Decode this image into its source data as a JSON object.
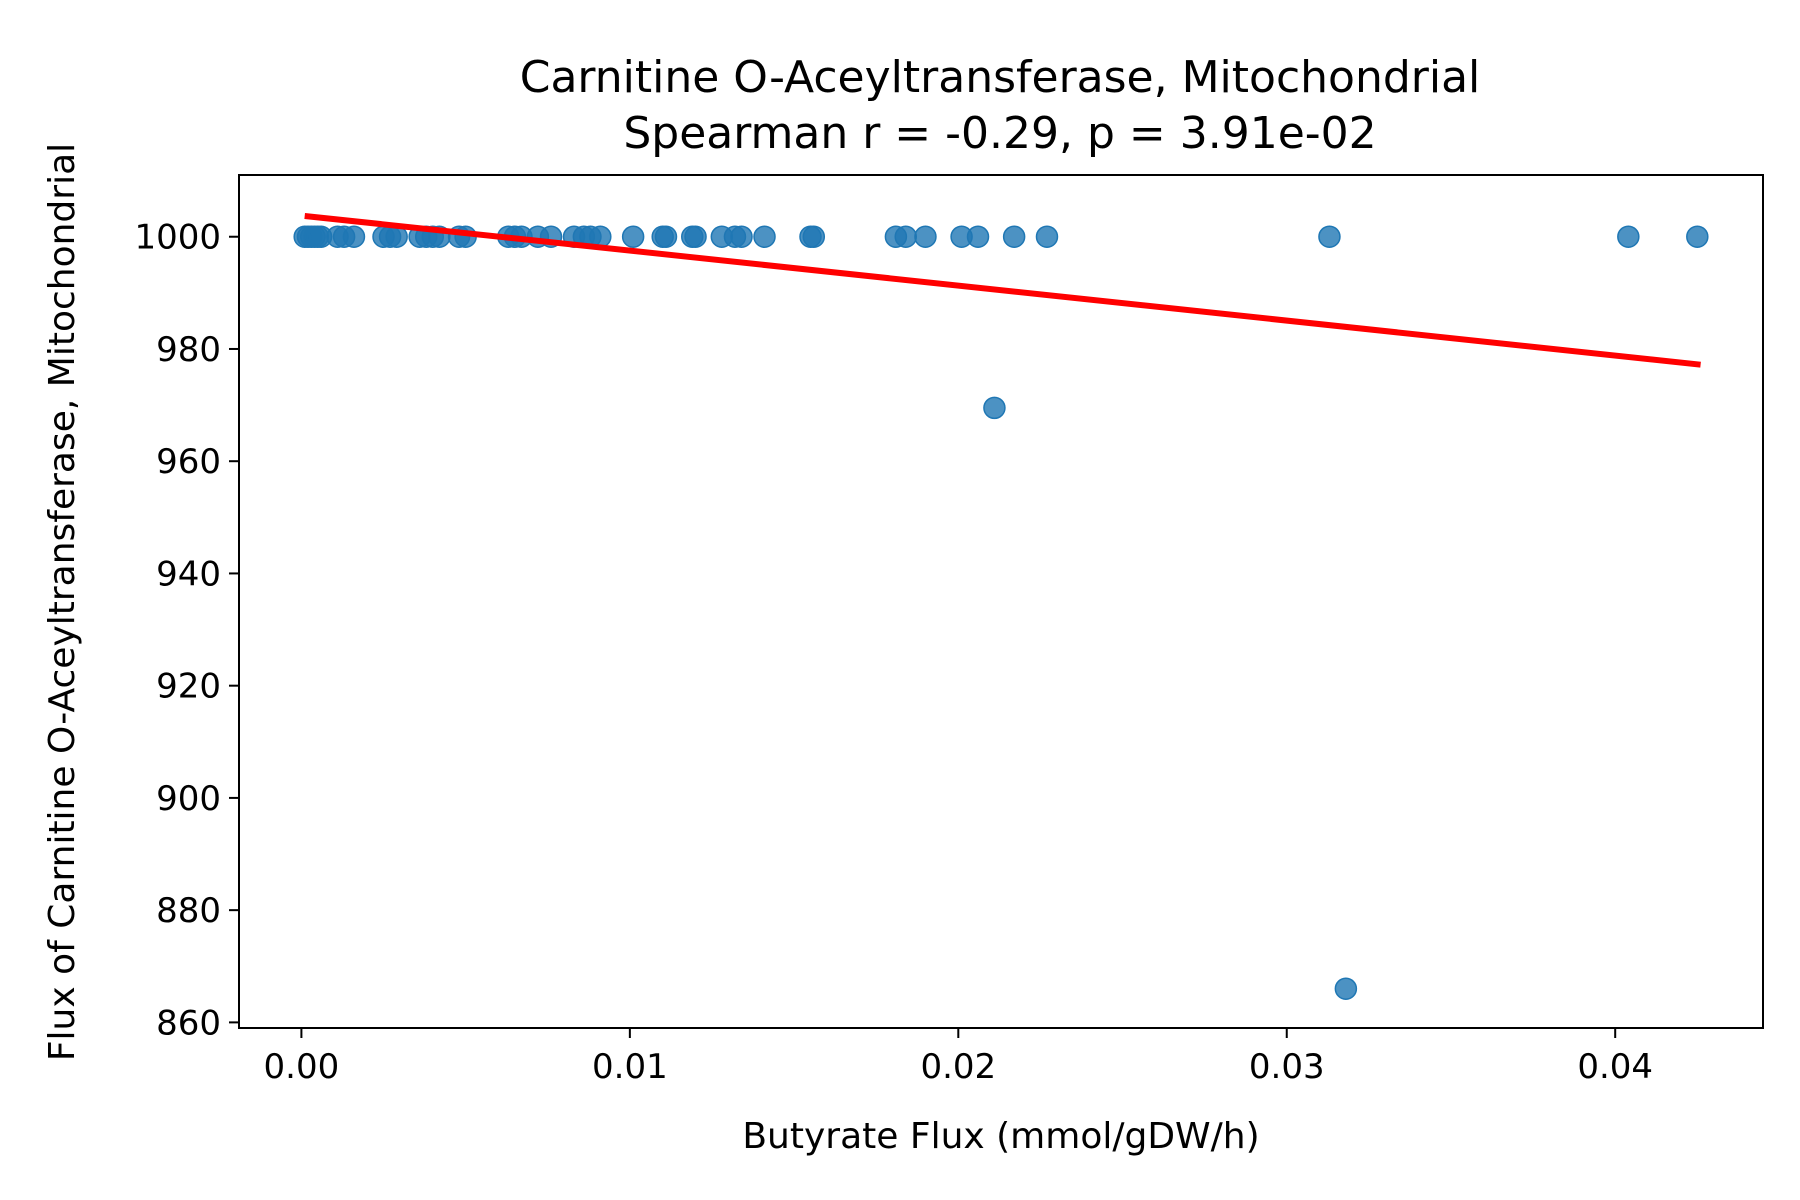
{
  "chart_data": {
    "type": "scatter",
    "title": "Carnitine O-Aceyltransferase, Mitochondrial",
    "subtitle": "Spearman r = -0.29, p = 3.91e-02",
    "xlabel": "Butyrate Flux (mmol/gDW/h)",
    "ylabel": "Flux of Carnitine O-Aceyltransferase, Mitochondrial",
    "xlim": [
      -0.0019,
      0.0445
    ],
    "ylim": [
      859,
      1011
    ],
    "xticks": [
      0.0,
      0.01,
      0.02,
      0.03,
      0.04
    ],
    "xtick_labels": [
      "0.00",
      "0.01",
      "0.02",
      "0.03",
      "0.04"
    ],
    "yticks": [
      860,
      880,
      900,
      920,
      940,
      960,
      980,
      1000
    ],
    "ytick_labels": [
      "860",
      "880",
      "900",
      "920",
      "940",
      "960",
      "980",
      "1000"
    ],
    "grid": false,
    "colors": {
      "points": "#1f77b4",
      "trend": "#ff0000"
    },
    "series": [
      {
        "x": [
          0.0001,
          0.0002,
          0.0003,
          0.0004,
          0.0005,
          0.0006,
          0.0011,
          0.0013,
          0.0016,
          0.0025,
          0.0027,
          0.0029,
          0.0036,
          0.0038,
          0.004,
          0.0042,
          0.0048,
          0.005,
          0.0063,
          0.0065,
          0.0067,
          0.0072,
          0.0076,
          0.0083,
          0.0086,
          0.0088,
          0.0091,
          0.0101,
          0.011,
          0.0111,
          0.0119,
          0.012,
          0.0128,
          0.0132,
          0.0134,
          0.0141,
          0.0155,
          0.0156,
          0.0181,
          0.0184,
          0.019,
          0.0201,
          0.0206,
          0.0217,
          0.0227,
          0.0313,
          0.0404,
          0.0425,
          0.0211,
          0.0318
        ],
        "y": [
          1000,
          1000,
          1000,
          1000,
          1000,
          1000,
          1000,
          1000,
          1000,
          1000,
          1000,
          1000,
          1000,
          1000,
          1000,
          1000,
          1000,
          1000,
          1000,
          1000,
          1000,
          1000,
          1000,
          1000,
          1000,
          1000,
          1000,
          1000,
          1000,
          1000,
          1000,
          1000,
          1000,
          1000,
          1000,
          1000,
          1000,
          1000,
          1000,
          1000,
          1000,
          1000,
          1000,
          1000,
          1000,
          1000,
          1000,
          1000,
          969.5,
          866
        ]
      }
    ],
    "trend_line": {
      "x": [
        0.0001,
        0.0426
      ],
      "y": [
        1003.7,
        977.2
      ]
    }
  }
}
